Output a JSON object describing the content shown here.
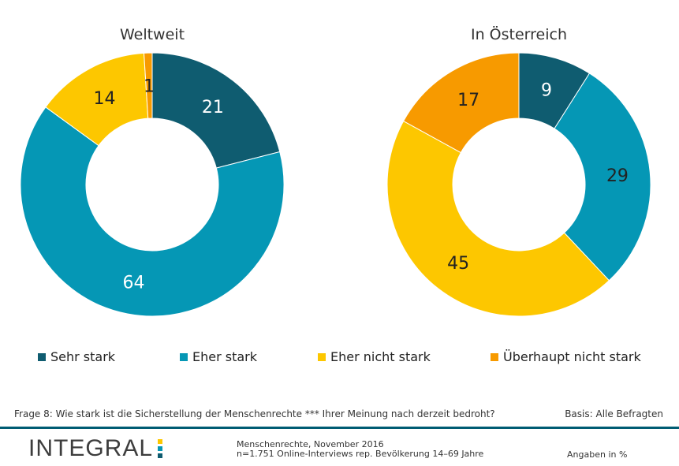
{
  "colors": {
    "sehr_stark": "#0f5c70",
    "eher_stark": "#0597b5",
    "eher_nicht_stark": "#fdc700",
    "ueberhaupt_nicht_stark": "#f79a00",
    "divider": "#005c73"
  },
  "legend": [
    {
      "label": "Sehr stark",
      "color": "#0f5c70"
    },
    {
      "label": "Eher stark",
      "color": "#0597b5"
    },
    {
      "label": "Eher nicht stark",
      "color": "#fdc700"
    },
    {
      "label": "Überhaupt nicht stark",
      "color": "#f79a00"
    }
  ],
  "chart_data": [
    {
      "type": "pie",
      "title": "Weltweit",
      "categories": [
        "Sehr stark",
        "Eher stark",
        "Eher nicht stark",
        "Überhaupt nicht stark"
      ],
      "values": [
        21,
        64,
        14,
        1
      ],
      "labels": [
        "21",
        "64",
        "14",
        "1"
      ],
      "label_colors": [
        "#ffffff",
        "#ffffff",
        "#222222",
        "#222222"
      ],
      "donut": true
    },
    {
      "type": "pie",
      "title": "In Österreich",
      "categories": [
        "Sehr stark",
        "Eher stark",
        "Eher nicht stark",
        "Überhaupt nicht stark"
      ],
      "values": [
        9,
        29,
        45,
        17
      ],
      "labels": [
        "9",
        "29",
        "45",
        "17"
      ],
      "label_colors": [
        "#ffffff",
        "#222222",
        "#222222",
        "#222222"
      ],
      "donut": true
    }
  ],
  "footer": {
    "question": "Frage 8: Wie stark ist die Sicherstellung der Menschenrechte *** Ihrer Meinung nach derzeit bedroht?",
    "basis": "Basis: Alle Befragten",
    "brand": "INTEGRAL",
    "brand_dot_colors": [
      "#fdc700",
      "#0597b5",
      "#0f5c70"
    ],
    "meta_line1": "Menschenrechte, November 2016",
    "meta_line2": "n=1.751 Online-Interviews rep. Bevölkerung 14–69 Jahre",
    "unit": "Angaben in %"
  }
}
